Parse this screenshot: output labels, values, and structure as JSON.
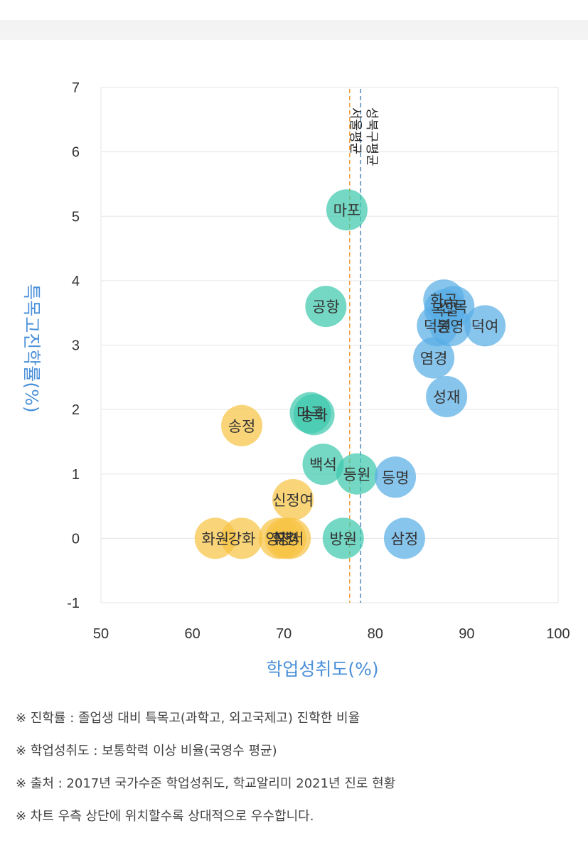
{
  "chart_data": {
    "type": "scatter",
    "xlabel": "학업성취도(%)",
    "ylabel": "특목고진학률(%)",
    "xlim": [
      50,
      100
    ],
    "ylim": [
      -1,
      7
    ],
    "x_ticks": [
      "50",
      "60",
      "70",
      "80",
      "90",
      "100"
    ],
    "y_ticks": [
      "-1",
      "0",
      "1",
      "2",
      "3",
      "4",
      "5",
      "6",
      "7"
    ],
    "grid": "horizontal",
    "reference_lines": [
      {
        "label": "성북구평균",
        "x": 78.4,
        "color": "#5b8dbf",
        "style": "dashed"
      },
      {
        "label": "서울평균",
        "x": 77.2,
        "color": "#f0a040",
        "style": "dashed"
      }
    ],
    "colors": {
      "high": "#5aafe6",
      "mid": "#3ec9ad",
      "low": "#f7c444"
    },
    "points": [
      {
        "label": "마포",
        "x": 76.9,
        "y": 5.1,
        "group": "mid"
      },
      {
        "label": "공항",
        "x": 74.6,
        "y": 3.6,
        "group": "mid"
      },
      {
        "label": "화곡",
        "x": 87.5,
        "y": 3.7,
        "group": "high"
      },
      {
        "label": "신목",
        "x": 88.6,
        "y": 3.6,
        "group": "high"
      },
      {
        "label": "목일",
        "x": 87.6,
        "y": 3.55,
        "group": "high"
      },
      {
        "label": "덕원",
        "x": 86.8,
        "y": 3.3,
        "group": "high"
      },
      {
        "label": "봉영",
        "x": 88.2,
        "y": 3.3,
        "group": "high"
      },
      {
        "label": "덕여",
        "x": 92.0,
        "y": 3.3,
        "group": "high"
      },
      {
        "label": "염경",
        "x": 86.4,
        "y": 2.8,
        "group": "high"
      },
      {
        "label": "성재",
        "x": 87.8,
        "y": 2.2,
        "group": "high"
      },
      {
        "label": "마곡",
        "x": 72.9,
        "y": 1.95,
        "group": "mid"
      },
      {
        "label": "송화",
        "x": 73.3,
        "y": 1.92,
        "group": "mid"
      },
      {
        "label": "송정",
        "x": 65.4,
        "y": 1.75,
        "group": "low"
      },
      {
        "label": "백석",
        "x": 74.3,
        "y": 1.15,
        "group": "mid"
      },
      {
        "label": "등원",
        "x": 78.0,
        "y": 1.0,
        "group": "mid"
      },
      {
        "label": "등명",
        "x": 82.2,
        "y": 0.95,
        "group": "high"
      },
      {
        "label": "신정여",
        "x": 71.0,
        "y": 0.6,
        "group": "low"
      },
      {
        "label": "화원",
        "x": 62.5,
        "y": 0.0,
        "group": "low"
      },
      {
        "label": "강화",
        "x": 65.4,
        "y": 0.0,
        "group": "low"
      },
      {
        "label": "양천",
        "x": 69.5,
        "y": 0.0,
        "group": "low"
      },
      {
        "label": "휘경",
        "x": 70.2,
        "y": 0.0,
        "group": "low"
      },
      {
        "label": "양서",
        "x": 70.7,
        "y": 0.0,
        "group": "low"
      },
      {
        "label": "방원",
        "x": 76.5,
        "y": 0.0,
        "group": "mid"
      },
      {
        "label": "삼정",
        "x": 83.2,
        "y": 0.0,
        "group": "high"
      }
    ]
  },
  "notes": [
    "※ 진학률 : 졸업생 대비 특목고(과학고, 외고국제고) 진학한 비율",
    "※ 학업성취도 : 보통학력 이상 비율(국영수 평균)",
    "※ 출처 : 2017년 국가수준 학업성취도, 학교알리미 2021년 진로 현황",
    "※ 차트 우측 상단에 위치할수록 상대적으로 우수합니다."
  ]
}
